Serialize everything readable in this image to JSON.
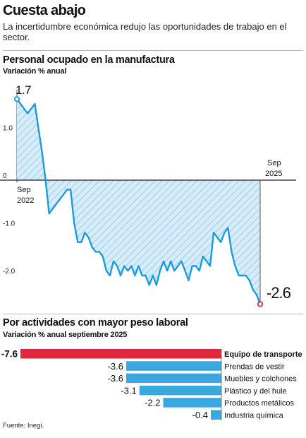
{
  "header": {
    "headline": "Cuesta abajo",
    "subtitle": "La incertidumbre económica redujo las oportunidades de trabajo en el sector."
  },
  "line_chart": {
    "title": "Personal ocupado en la manufactura",
    "unit": "Variación % anual",
    "start_label_line1": "Sep",
    "start_label_line2": "2022",
    "end_label_line1": "Sep",
    "end_label_line2": "2025",
    "first_value_label": "1.7",
    "last_value_label": "-2.6",
    "y_tick_labels": [
      "1.0",
      "0",
      "-1.0",
      "-2.0"
    ],
    "line_color": "#1a9be0",
    "fill_color": "#d6ecf8",
    "first_marker_color": "#1a9be0",
    "last_marker_color": "#e0283c"
  },
  "bar_chart": {
    "title": "Por actividades con mayor peso laboral",
    "unit": "Variación % anual septiembre 2025",
    "highlight_color": "#e0283c",
    "bar_color": "#3aa7e0"
  },
  "source": "Fuente: Inegi.",
  "chart_data": [
    {
      "type": "line",
      "title": "Personal ocupado en la manufactura",
      "ylabel": "Variación % anual",
      "x_start": "Sep 2022",
      "x_end": "Sep 2025",
      "yticks": [
        1.0,
        0,
        -1.0,
        -2.0
      ],
      "ylim": [
        -2.8,
        1.9
      ],
      "grid": false,
      "values": [
        1.7,
        1.6,
        1.5,
        1.4,
        1.5,
        1.6,
        1.1,
        0.6,
        0.0,
        -0.7,
        -0.6,
        -0.5,
        -0.4,
        -0.3,
        -0.2,
        -0.2,
        -0.9,
        -1.3,
        -1.3,
        -1.1,
        -1.2,
        -1.4,
        -1.5,
        -1.5,
        -1.6,
        -1.9,
        -2.0,
        -1.7,
        -1.8,
        -2.0,
        -1.8,
        -1.9,
        -1.8,
        -2.0,
        -1.8,
        -2.0,
        -2.0,
        -2.2,
        -2.0,
        -2.2,
        -1.9,
        -1.7,
        -1.9,
        -1.7,
        -1.9,
        -1.8,
        -1.7,
        -1.9,
        -2.1,
        -1.8,
        -1.8,
        -1.9,
        -1.6,
        -1.7,
        -1.8,
        -1.1,
        -1.2,
        -1.3,
        -1.1,
        -1.0,
        -1.5,
        -1.8,
        -2.0,
        -2.0,
        -2.0,
        -2.1,
        -2.3,
        -2.4,
        -2.6
      ]
    },
    {
      "type": "bar",
      "title": "Por actividades con mayor peso laboral",
      "ylabel": "Variación % anual septiembre 2025",
      "categories": [
        "Equipo de transporte",
        "Prendas de vestir",
        "Muebles y colchones",
        "Plástico y del hule",
        "Productos metálicos",
        "Industria química"
      ],
      "values": [
        -7.6,
        -3.6,
        -3.6,
        -3.1,
        -2.2,
        -0.4
      ],
      "value_labels": [
        "-7.6",
        "-3.6",
        "-3.6",
        "-3.1",
        "-2.2",
        "-0.4"
      ],
      "highlight_index": 0,
      "xlim": [
        -7.6,
        0
      ]
    }
  ]
}
